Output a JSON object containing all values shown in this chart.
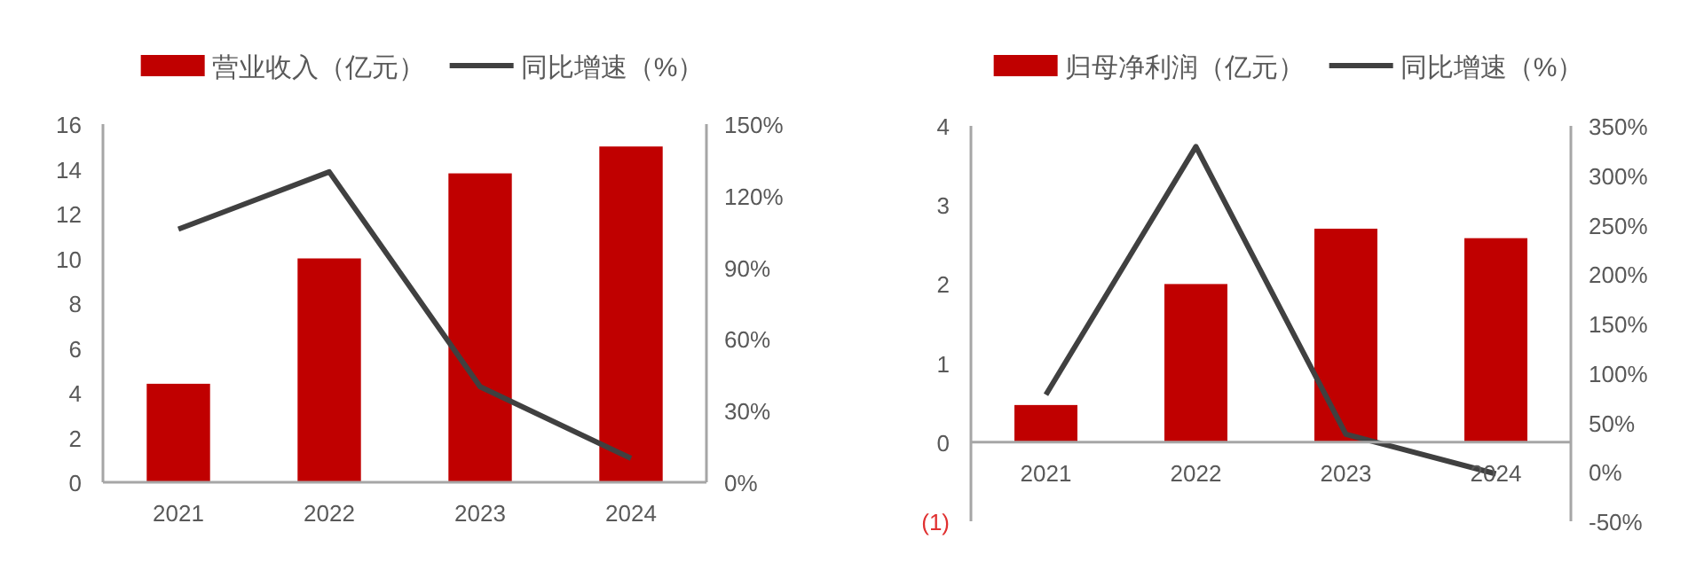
{
  "chart_data": [
    {
      "type": "bar",
      "categories": [
        "2021",
        "2022",
        "2023",
        "2024"
      ],
      "legend": "top",
      "grid": false,
      "series": [
        {
          "name": "营业收入（亿元）",
          "color": "#c00000",
          "values": [
            4.4,
            10,
            13.8,
            15.0
          ]
        },
        {
          "name": "同比增速（%）",
          "type": "line",
          "axis": "y2",
          "color": "#404040",
          "marker": "none",
          "values": [
            106,
            130,
            40,
            10
          ]
        }
      ],
      "ylim": [
        0,
        16
      ],
      "yticks": [
        0,
        2,
        4,
        6,
        8,
        10,
        12,
        14,
        16
      ],
      "y2lim": [
        0,
        150
      ],
      "y2ticks": [
        {
          "value": 0,
          "label": "0%"
        },
        {
          "value": 30,
          "label": "30%"
        },
        {
          "value": 60,
          "label": "60%"
        },
        {
          "value": 90,
          "label": "90%"
        },
        {
          "value": 120,
          "label": "120%"
        },
        {
          "value": 150,
          "label": "150%"
        }
      ]
    },
    {
      "type": "bar",
      "categories": [
        "2021",
        "2022",
        "2023",
        "2024"
      ],
      "legend": "top",
      "grid": false,
      "series": [
        {
          "name": "归母净利润（亿元）",
          "color": "#c00000",
          "values": [
            0.47,
            2.0,
            2.7,
            2.58
          ]
        },
        {
          "name": "同比增速（%）",
          "type": "line",
          "axis": "y2",
          "color": "#404040",
          "marker": "none",
          "values": [
            78,
            329,
            38,
            -2
          ]
        }
      ],
      "ylim": [
        -1,
        4
      ],
      "yticks": [
        {
          "value": -1,
          "label": "(1)"
        },
        0,
        1,
        2,
        3,
        4
      ],
      "y2lim": [
        -50,
        350
      ],
      "y2ticks": [
        {
          "value": -50,
          "label": "-50%"
        },
        {
          "value": 0,
          "label": "0%"
        },
        {
          "value": 50,
          "label": "50%"
        },
        {
          "value": 100,
          "label": "100%"
        },
        {
          "value": 150,
          "label": "150%"
        },
        {
          "value": 200,
          "label": "200%"
        },
        {
          "value": 250,
          "label": "250%"
        },
        {
          "value": 300,
          "label": "300%"
        },
        {
          "value": 350,
          "label": "350%"
        }
      ]
    }
  ]
}
